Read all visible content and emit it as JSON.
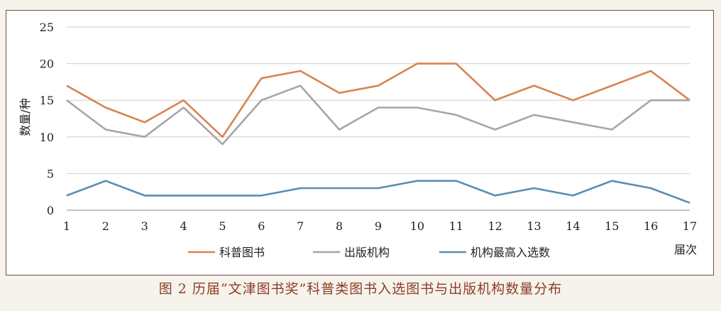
{
  "chart_data": {
    "type": "line",
    "x": [
      1,
      2,
      3,
      4,
      5,
      6,
      7,
      8,
      9,
      10,
      11,
      12,
      13,
      14,
      15,
      16,
      17
    ],
    "series": [
      {
        "name": "科普图书",
        "color": "#d9834e",
        "values": [
          17,
          14,
          12,
          15,
          10,
          18,
          19,
          16,
          17,
          20,
          20,
          15,
          17,
          15,
          17,
          19,
          15
        ]
      },
      {
        "name": "出版机构",
        "color": "#a6a6a6",
        "values": [
          15,
          11,
          10,
          14,
          9,
          15,
          17,
          11,
          14,
          14,
          13,
          11,
          13,
          12,
          11,
          15,
          15
        ]
      },
      {
        "name": "机构最高入选数",
        "color": "#5b8db0",
        "values": [
          2,
          4,
          2,
          2,
          2,
          2,
          3,
          3,
          3,
          4,
          4,
          2,
          3,
          2,
          4,
          3,
          1
        ]
      }
    ],
    "ylabel": "数量/种",
    "xlabel": "届次",
    "ylim": [
      0,
      25
    ],
    "yticks": [
      0,
      5,
      10,
      15,
      20,
      25
    ],
    "grid": true,
    "legend": "bottom"
  },
  "caption": "图 2  历届“文津图书奖”科普类图书入选图书与出版机构数量分布"
}
